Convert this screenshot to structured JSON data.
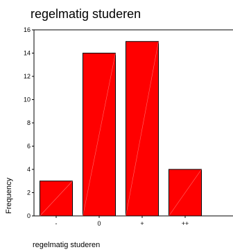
{
  "chart_data": {
    "type": "bar",
    "title": "regelmatig studeren",
    "xlabel": "regelmatig studeren",
    "ylabel": "Frequency",
    "categories": [
      "-",
      "0",
      "+",
      "++"
    ],
    "values": [
      3,
      14,
      15,
      4
    ],
    "ylim": [
      0,
      16
    ],
    "yticks": [
      0,
      2,
      4,
      6,
      8,
      10,
      12,
      14,
      16
    ],
    "grid": false,
    "legend": "none",
    "bar_color": "#ff0000",
    "bar_stroke": "#000000"
  }
}
